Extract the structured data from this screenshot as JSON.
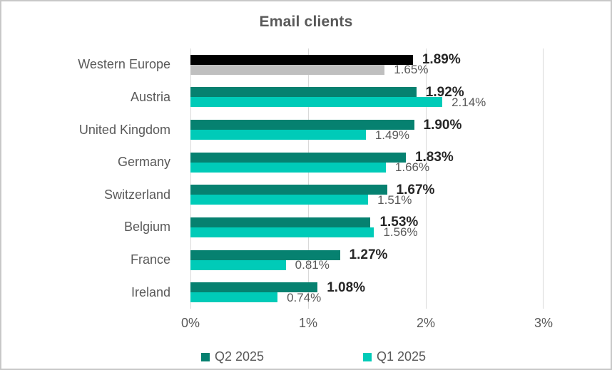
{
  "title": "Email clients",
  "chart_data": {
    "type": "bar",
    "orientation": "horizontal",
    "title": "Email clients",
    "categories": [
      "Western Europe",
      "Austria",
      "United Kingdom",
      "Germany",
      "Switzerland",
      "Belgium",
      "France",
      "Ireland"
    ],
    "series": [
      {
        "name": "Q2 2025",
        "color": "#068170",
        "values": [
          1.89,
          1.92,
          1.9,
          1.83,
          1.67,
          1.53,
          1.27,
          1.08
        ],
        "labels": [
          "1.89%",
          "1.92%",
          "1.90%",
          "1.83%",
          "1.67%",
          "1.53%",
          "1.27%",
          "1.08%"
        ]
      },
      {
        "name": "Q1 2025",
        "color": "#00cbb8",
        "values": [
          1.65,
          2.14,
          1.49,
          1.66,
          1.51,
          1.56,
          0.81,
          0.74
        ],
        "labels": [
          "1.65%",
          "2.14%",
          "1.49%",
          "1.66%",
          "1.51%",
          "1.56%",
          "0.81%",
          "0.74%"
        ]
      }
    ],
    "highlight": {
      "category": "Western Europe",
      "series_colors": [
        "#000000",
        "#bfbfbf"
      ]
    },
    "x_ticks": [
      "0%",
      "1%",
      "2%",
      "3%"
    ],
    "x_max": 3,
    "grid": true,
    "legend_position": "bottom",
    "colors": {
      "gridline": "#d9d9d9",
      "axis_text": "#595959",
      "value_label_strong": "#262626",
      "value_label_light": "#595959"
    }
  }
}
